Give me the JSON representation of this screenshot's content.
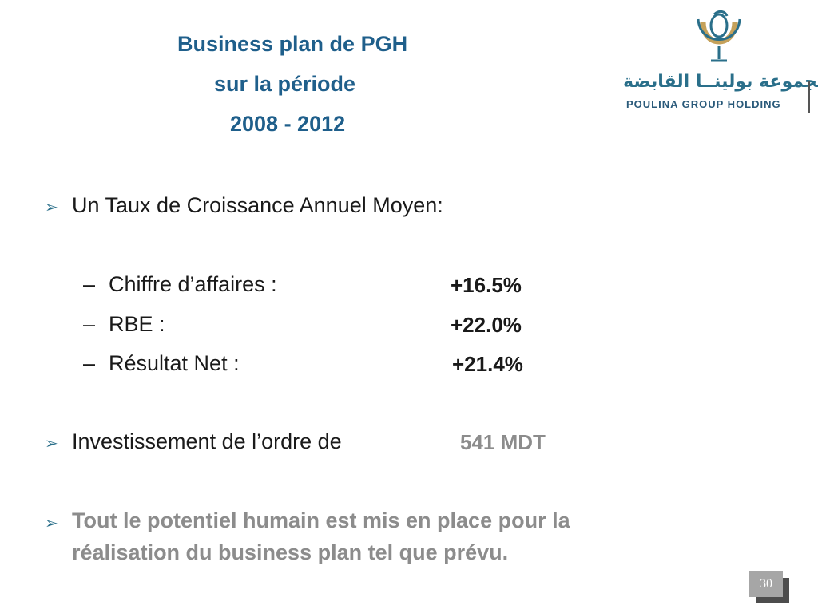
{
  "title": {
    "line1": "Business plan de PGH",
    "line2": "sur la période",
    "line3": "2008 - 2012"
  },
  "logo": {
    "arabic": "مجموعة بولينــا القابضة",
    "latin": "POULINA GROUP HOLDING"
  },
  "bullets": {
    "growth_heading": "Un Taux de Croissance Annuel Moyen:",
    "items": [
      {
        "label": "Chiffre d’affaires :",
        "value": "+16.5%"
      },
      {
        "label": "RBE :",
        "value": "+22.0%"
      },
      {
        "label": "Résultat Net :",
        "value": "+21.4%"
      }
    ],
    "investment_label": "Investissement de l’ordre de",
    "investment_value": "541 MDT",
    "human_line1": "Tout le potentiel humain est mis en place pour la",
    "human_line2": "réalisation du business plan tel que prévu."
  },
  "page_number": "30",
  "colors": {
    "title": "#1f5f8b",
    "accent": "#2a6f8a",
    "grey_text": "#8c8c8c",
    "page_box": "#a6a6a6",
    "page_shadow": "#4d4d4d"
  },
  "icons": [
    "arrow-bullet-icon",
    "poulina-logo-icon"
  ]
}
